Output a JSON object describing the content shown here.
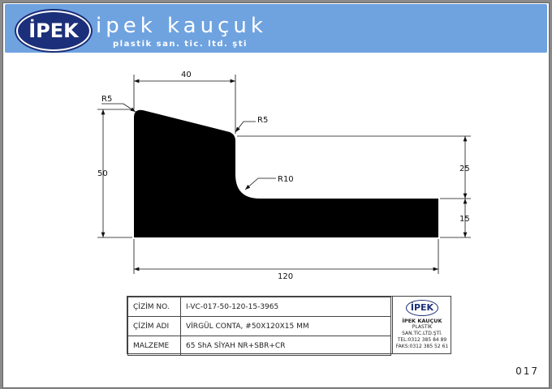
{
  "header": {
    "logo_text": "İPEK",
    "brand": "ipek kauçuk",
    "subtitle": "plastik san. tic. ltd. şti"
  },
  "drawing": {
    "dimensions": {
      "top_width": "40",
      "height": "50",
      "upper_step": "25",
      "lower_step": "15",
      "total_width": "120"
    },
    "radii": {
      "top_left": "R5",
      "top_right": "R5",
      "inner": "R10"
    }
  },
  "title_block": {
    "rows": [
      {
        "label": "ÇİZİM NO.",
        "value": "I-VC-017-50-120-15-3965"
      },
      {
        "label": "ÇİZİM ADI",
        "value": "VİRGÜL CONTA, #50X120X15 MM"
      },
      {
        "label": "MALZEME",
        "value": "65 ShA SİYAH NR+SBR+CR"
      }
    ],
    "company": {
      "logo": "İPEK",
      "name": "İPEK KAUÇUK",
      "line2": "PLASTİK",
      "line3": "SAN.TİC.LTD.ŞTİ.",
      "tel": "TEL:0312 385 84 89",
      "fax": "FAKS:0312 385 52 61"
    }
  },
  "page_number": "017"
}
